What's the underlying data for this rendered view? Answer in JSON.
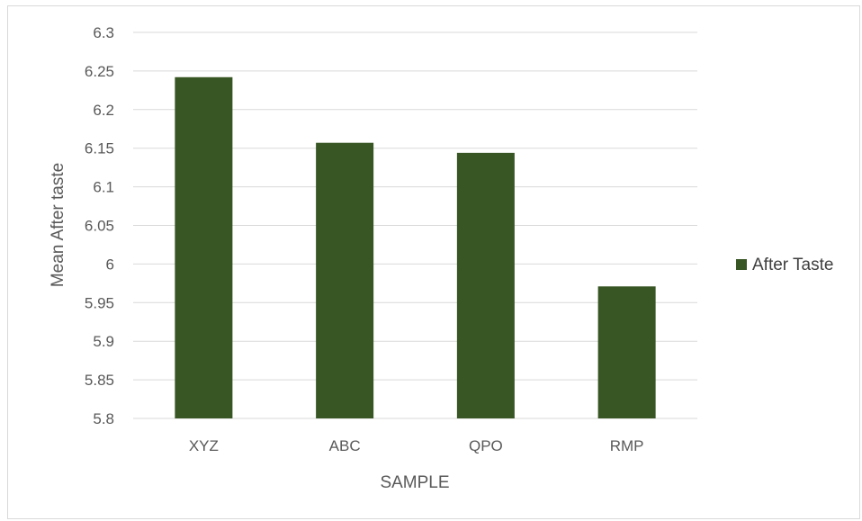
{
  "chart_data": {
    "type": "bar",
    "categories": [
      "XYZ",
      "ABC",
      "QPO",
      "RMP"
    ],
    "series": [
      {
        "name": "After Taste",
        "values": [
          6.242,
          6.157,
          6.144,
          5.971
        ]
      }
    ],
    "xlabel": "SAMPLE",
    "ylabel": "Mean After taste",
    "ylim": [
      5.8,
      6.3
    ],
    "yticks": [
      5.8,
      5.85,
      5.9,
      5.95,
      6.0,
      6.05,
      6.1,
      6.15,
      6.2,
      6.25,
      6.3
    ],
    "ytick_labels": [
      "5.8",
      "5.85",
      "5.9",
      "5.95",
      "6",
      "6.05",
      "6.1",
      "6.15",
      "6.2",
      "6.25",
      "6.3"
    ],
    "grid": true,
    "legend_position": "right",
    "colors": {
      "bar": "#375623",
      "grid": "#d9d9d9",
      "text": "#595959"
    }
  }
}
